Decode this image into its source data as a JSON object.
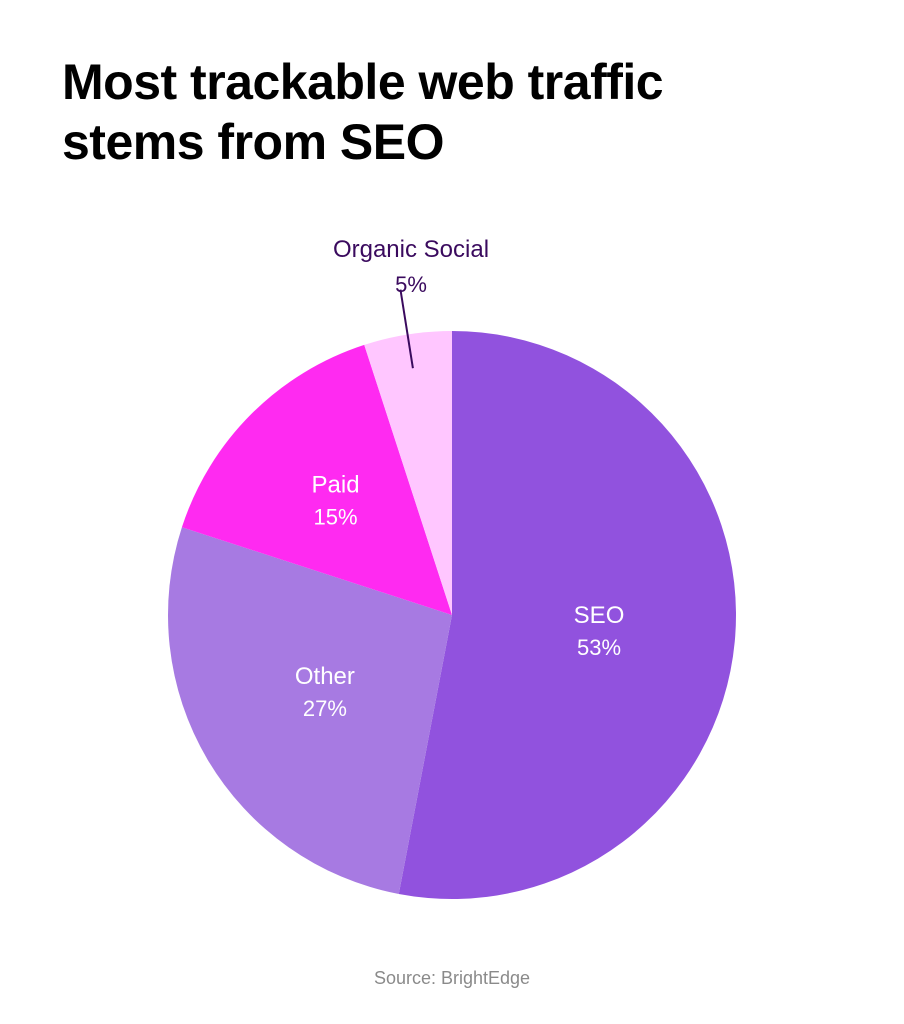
{
  "title": "Most trackable web traffic\nstems from SEO",
  "source": "Source: BrightEdge",
  "chart_data": {
    "type": "pie",
    "start": "12 o'clock",
    "direction": "clockwise",
    "slices": [
      {
        "label": "SEO",
        "value": 53,
        "display": "53%",
        "color": "#9152de",
        "text_color": "#ffffff"
      },
      {
        "label": "Other",
        "value": 27,
        "display": "27%",
        "color": "#a77ae2",
        "text_color": "#ffffff"
      },
      {
        "label": "Paid",
        "value": 15,
        "display": "15%",
        "color": "#ff2af1",
        "text_color": "#ffffff"
      },
      {
        "label": "Organic Social",
        "value": 5,
        "display": "5%",
        "color": "#ffc6ff",
        "text_color": "#3a0a5e"
      }
    ]
  }
}
